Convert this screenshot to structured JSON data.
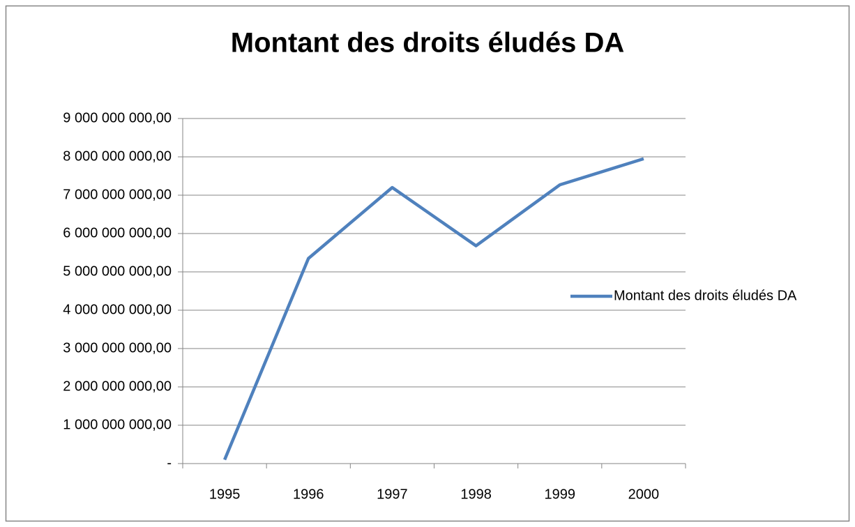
{
  "chart_data": {
    "type": "line",
    "title": "Montant des droits éludés DA",
    "categories": [
      "1995",
      "1996",
      "1997",
      "1998",
      "1999",
      "2000"
    ],
    "series": [
      {
        "name": "Montant des droits éludés DA",
        "color": "#4f81bd",
        "values": [
          100000000,
          5350000000,
          7200000000,
          5680000000,
          7270000000,
          7950000000
        ]
      }
    ],
    "ylim": [
      0,
      9000000000
    ],
    "yticks": [
      {
        "value": 0,
        "label": "-"
      },
      {
        "value": 1000000000,
        "label": "1 000 000 000,00"
      },
      {
        "value": 2000000000,
        "label": "2 000 000 000,00"
      },
      {
        "value": 3000000000,
        "label": "3 000 000 000,00"
      },
      {
        "value": 4000000000,
        "label": "4 000 000 000,00"
      },
      {
        "value": 5000000000,
        "label": "5 000 000 000,00"
      },
      {
        "value": 6000000000,
        "label": "6 000 000 000,00"
      },
      {
        "value": 7000000000,
        "label": "7 000 000 000,00"
      },
      {
        "value": 8000000000,
        "label": "8 000 000 000,00"
      },
      {
        "value": 9000000000,
        "label": "9 000 000 000,00"
      }
    ],
    "grid": true,
    "legend": "right"
  }
}
